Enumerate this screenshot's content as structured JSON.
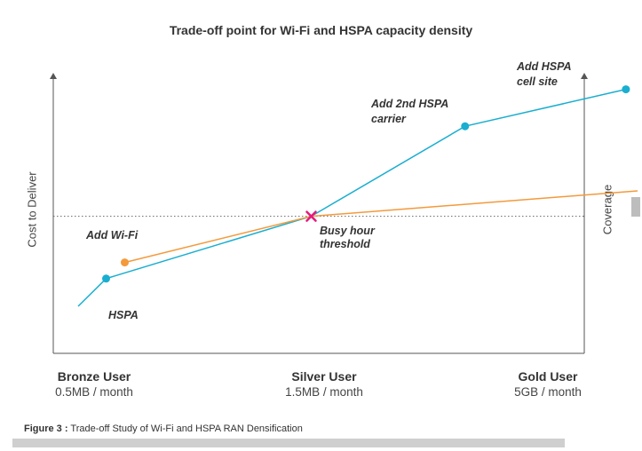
{
  "chart_data": {
    "type": "line",
    "title": "Trade-off point for Wi-Fi and HSPA capacity density",
    "ylabel_left": "Cost to Deliver",
    "ylabel_right": "Coverage",
    "categories": [
      {
        "name": "Bronze User",
        "sub": "0.5MB / month"
      },
      {
        "name": "Silver User",
        "sub": "1.5MB / month"
      },
      {
        "name": "Gold User",
        "sub": "5GB / month"
      }
    ],
    "series": [
      {
        "name": "HSPA",
        "color": "#1aaed0",
        "points": [
          [
            0.0,
            0.05
          ],
          [
            0.12,
            0.17
          ],
          [
            1.0,
            0.44
          ],
          [
            1.66,
            0.83
          ],
          [
            2.35,
            0.99
          ]
        ]
      },
      {
        "name": "Wi-Fi",
        "color": "#f39a3c",
        "points": [
          [
            0.2,
            0.24
          ],
          [
            1.0,
            0.44
          ],
          [
            2.4,
            0.55
          ]
        ]
      }
    ],
    "markers": [
      {
        "series": "HSPA",
        "x": 0.12,
        "y": 0.17
      },
      {
        "series": "HSPA",
        "x": 1.66,
        "y": 0.83
      },
      {
        "series": "HSPA",
        "x": 2.35,
        "y": 0.99
      },
      {
        "series": "Wi-Fi",
        "x": 0.2,
        "y": 0.24
      }
    ],
    "threshold": {
      "y": 0.44,
      "label": "Busy hour threshold"
    },
    "annotations": [
      {
        "text": "HSPA"
      },
      {
        "text": "Add Wi-Fi"
      },
      {
        "text": "Add 2nd HSPA carrier"
      },
      {
        "text": "Add HSPA cell site"
      },
      {
        "text": "Busy hour threshold"
      }
    ],
    "grid": false,
    "legend": "none"
  },
  "colors": {
    "hspa": "#1aaed0",
    "wifi": "#f39a3c",
    "crossing": "#e6197d",
    "axis": "#555555"
  },
  "caption": {
    "label": "Figure 3",
    "sep": ":",
    "text": "Trade-off Study of Wi-Fi and HSPA RAN Densification"
  }
}
